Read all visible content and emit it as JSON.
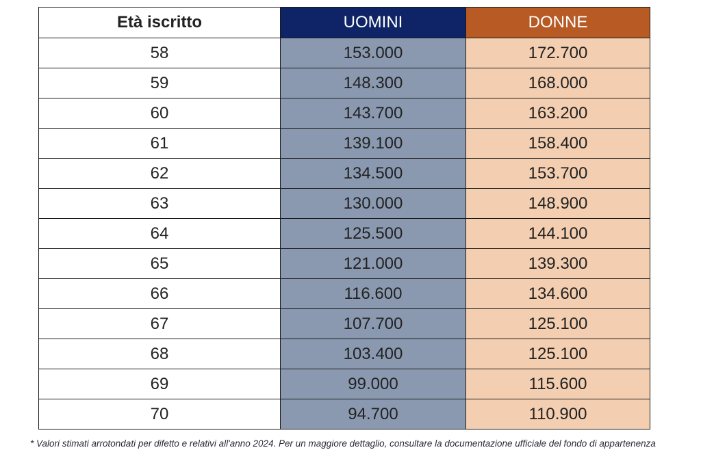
{
  "table": {
    "headers": {
      "age": "Età iscritto",
      "men": "UOMINI",
      "women": "DONNE"
    },
    "rows": [
      {
        "age": "58",
        "men": "153.000",
        "women": "172.700"
      },
      {
        "age": "59",
        "men": "148.300",
        "women": "168.000"
      },
      {
        "age": "60",
        "men": "143.700",
        "women": "163.200"
      },
      {
        "age": "61",
        "men": "139.100",
        "women": "158.400"
      },
      {
        "age": "62",
        "men": "134.500",
        "women": "153.700"
      },
      {
        "age": "63",
        "men": "130.000",
        "women": "148.900"
      },
      {
        "age": "64",
        "men": "125.500",
        "women": "144.100"
      },
      {
        "age": "65",
        "men": "121.000",
        "women": "139.300"
      },
      {
        "age": "66",
        "men": "116.600",
        "women": "134.600"
      },
      {
        "age": "67",
        "men": "107.700",
        "women": "125.100"
      },
      {
        "age": "68",
        "men": "103.400",
        "women": "125.100"
      },
      {
        "age": "69",
        "men": "99.000",
        "women": "115.600"
      },
      {
        "age": "70",
        "men": "94.700",
        "women": "110.900"
      }
    ]
  },
  "footnote": "* Valori stimati arrotondati per difetto e relativi all'anno 2024. Per un maggiore dettaglio, consultare la documentazione ufficiale del fondo di appartenenza",
  "colors": {
    "men_header": "#0f2466",
    "women_header": "#b75a24",
    "men_cell": "#8a99b0",
    "women_cell": "#f3ceb0"
  }
}
